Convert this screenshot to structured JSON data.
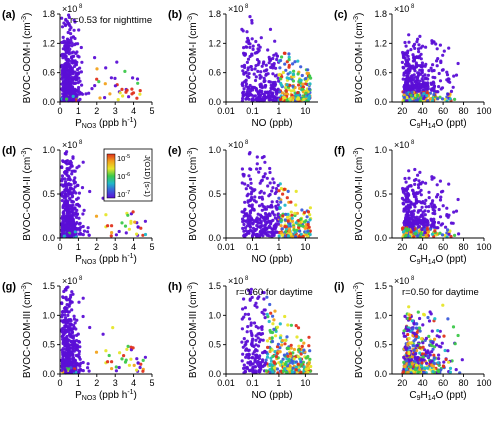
{
  "panels": [
    {
      "id": "a",
      "label": "(a)",
      "xlabel": "P<NO3>",
      "xunit": " (ppb h",
      "xunit_tail": ")",
      "xscale": "linear",
      "xlim": [
        0,
        5
      ],
      "xticks": [
        "0",
        "1",
        "2",
        "3",
        "4",
        "5"
      ],
      "ylabel": "BVOC-OOM-I",
      "ylim_max": 1.8,
      "yticks": [
        "0.0",
        "0.6",
        "1.2",
        "1.8 ×10"
      ],
      "annotation": "r=0.53 for nighttime",
      "dist": "pno3",
      "n": 520
    },
    {
      "id": "b",
      "label": "(b)",
      "xlabel": "NO (ppb)",
      "xscale": "log",
      "xlim": [
        0.01,
        30
      ],
      "xticks": [
        "0.01",
        "0.1",
        "1",
        "10"
      ],
      "ylabel": "BVOC-OOM-I",
      "ylim_max": 1.8,
      "yticks": [
        "0.0",
        "0.6",
        "1.2",
        "1.8 ×10"
      ],
      "annotation": "",
      "dist": "no",
      "n": 520
    },
    {
      "id": "c",
      "label": "(c)",
      "xlabel": "C9H14O (ppt)",
      "xscale": "linear",
      "xlim": [
        10,
        100
      ],
      "xticks": [
        "20",
        "40",
        "60",
        "80",
        "100"
      ],
      "ylabel": "BVOC-OOM-I",
      "ylim_max": 1.8,
      "yticks": [
        "0.0",
        "0.6",
        "1.2",
        "1.8 ×10"
      ],
      "annotation": "",
      "dist": "c9",
      "n": 520
    },
    {
      "id": "d",
      "label": "(d)",
      "xlabel": "P<NO3>",
      "xunit": " (ppb h",
      "xunit_tail": ")",
      "xscale": "linear",
      "xlim": [
        0,
        5
      ],
      "xticks": [
        "0",
        "1",
        "2",
        "3",
        "4",
        "5"
      ],
      "ylabel": "BVOC-OOM-II",
      "ylim_max": 1.0,
      "yticks": [
        "0.0",
        "0.5",
        "1.0 ×10"
      ],
      "annotation": "",
      "dist": "pno3",
      "n": 500
    },
    {
      "id": "e",
      "label": "(e)",
      "xlabel": "NO (ppb)",
      "xscale": "log",
      "xlim": [
        0.01,
        30
      ],
      "xticks": [
        "0.01",
        "0.1",
        "1",
        "10"
      ],
      "ylabel": "BVOC-OOM-II",
      "ylim_max": 1.0,
      "yticks": [
        "0.0",
        "0.5",
        "1.0 ×10"
      ],
      "annotation": "",
      "dist": "no",
      "n": 500
    },
    {
      "id": "f",
      "label": "(f)",
      "xlabel": "C9H14O (ppt)",
      "xscale": "linear",
      "xlim": [
        10,
        100
      ],
      "xticks": [
        "20",
        "40",
        "60",
        "80",
        "100"
      ],
      "ylabel": "BVOC-OOM-II",
      "ylim_max": 1.0,
      "yticks": [
        "0.0",
        "0.5",
        "1.0 ×10"
      ],
      "annotation": "",
      "dist": "c9",
      "n": 500
    },
    {
      "id": "g",
      "label": "(g)",
      "xlabel": "P<NO3>",
      "xunit": " (ppb h",
      "xunit_tail": ")",
      "xscale": "linear",
      "xlim": [
        0,
        5
      ],
      "xticks": [
        "0",
        "1",
        "2",
        "3",
        "4",
        "5"
      ],
      "ylabel": "BVOC-OOM-III",
      "ylim_max": 1.5,
      "yticks": [
        "0.0",
        "0.5",
        "1.0",
        "1.5 ×10"
      ],
      "annotation": "",
      "dist": "pno3",
      "n": 480
    },
    {
      "id": "h",
      "label": "(h)",
      "xlabel": "NO (ppb)",
      "xscale": "log",
      "xlim": [
        0.01,
        30
      ],
      "xticks": [
        "0.01",
        "0.1",
        "1",
        "10"
      ],
      "ylabel": "BVOC-OOM-III",
      "ylim_max": 1.5,
      "yticks": [
        "0.0",
        "0.5",
        "1.0",
        "1.5 ×10"
      ],
      "annotation": "r=0.60 for daytime",
      "dist": "no3",
      "n": 480
    },
    {
      "id": "i",
      "label": "(i)",
      "xlabel": "C9H14O (ppt)",
      "xscale": "linear",
      "xlim": [
        10,
        100
      ],
      "xticks": [
        "20",
        "40",
        "60",
        "80",
        "100"
      ],
      "ylabel": "BVOC-OOM-III",
      "ylim_max": 1.5,
      "yticks": [
        "0.0",
        "0.5",
        "1.0",
        "1.5 ×10"
      ],
      "annotation": "r=0.50 for daytime",
      "dist": "c93",
      "n": 480
    }
  ],
  "colorbar": {
    "title": "J(O1D) (s-1)",
    "ticks": [
      "10-5",
      "10-6",
      "10-7"
    ]
  },
  "chart_data": {
    "type": "scatter",
    "note_units": "y in molecules cm-3 ×10^8",
    "colors": [
      "#5b0fd6",
      "#3b5bdb",
      "#20b8c8",
      "#3cc84a",
      "#e6e62a",
      "#f2a21c",
      "#e0321c"
    ],
    "panels": [
      {
        "id": "a",
        "x": "P_NO3 (ppb h-1)",
        "y": "BVOC-OOM-I (cm-3)",
        "xlim": [
          0,
          5
        ],
        "ylim": [
          0,
          180000000.0
        ]
      },
      {
        "id": "b",
        "x": "NO (ppb)",
        "y": "BVOC-OOM-I (cm-3)",
        "xlim": [
          0.01,
          30
        ],
        "ylim": [
          0,
          180000000.0
        ],
        "xscale": "log"
      },
      {
        "id": "c",
        "x": "C9H14O (ppt)",
        "y": "BVOC-OOM-I (cm-3)",
        "xlim": [
          10,
          100
        ],
        "ylim": [
          0,
          180000000.0
        ]
      },
      {
        "id": "d",
        "x": "P_NO3 (ppb h-1)",
        "y": "BVOC-OOM-II (cm-3)",
        "xlim": [
          0,
          5
        ],
        "ylim": [
          0,
          100000000.0
        ]
      },
      {
        "id": "e",
        "x": "NO (ppb)",
        "y": "BVOC-OOM-II (cm-3)",
        "xlim": [
          0.01,
          30
        ],
        "ylim": [
          0,
          100000000.0
        ],
        "xscale": "log"
      },
      {
        "id": "f",
        "x": "C9H14O (ppt)",
        "y": "BVOC-OOM-II (cm-3)",
        "xlim": [
          10,
          100
        ],
        "ylim": [
          0,
          100000000.0
        ]
      },
      {
        "id": "g",
        "x": "P_NO3 (ppb h-1)",
        "y": "BVOC-OOM-III (cm-3)",
        "xlim": [
          0,
          5
        ],
        "ylim": [
          0,
          150000000.0
        ]
      },
      {
        "id": "h",
        "x": "NO (ppb)",
        "y": "BVOC-OOM-III (cm-3)",
        "xlim": [
          0.01,
          30
        ],
        "ylim": [
          0,
          150000000.0
        ],
        "xscale": "log"
      },
      {
        "id": "i",
        "x": "C9H14O (ppt)",
        "y": "BVOC-OOM-III (cm-3)",
        "xlim": [
          10,
          100
        ],
        "ylim": [
          0,
          150000000.0
        ]
      }
    ]
  }
}
